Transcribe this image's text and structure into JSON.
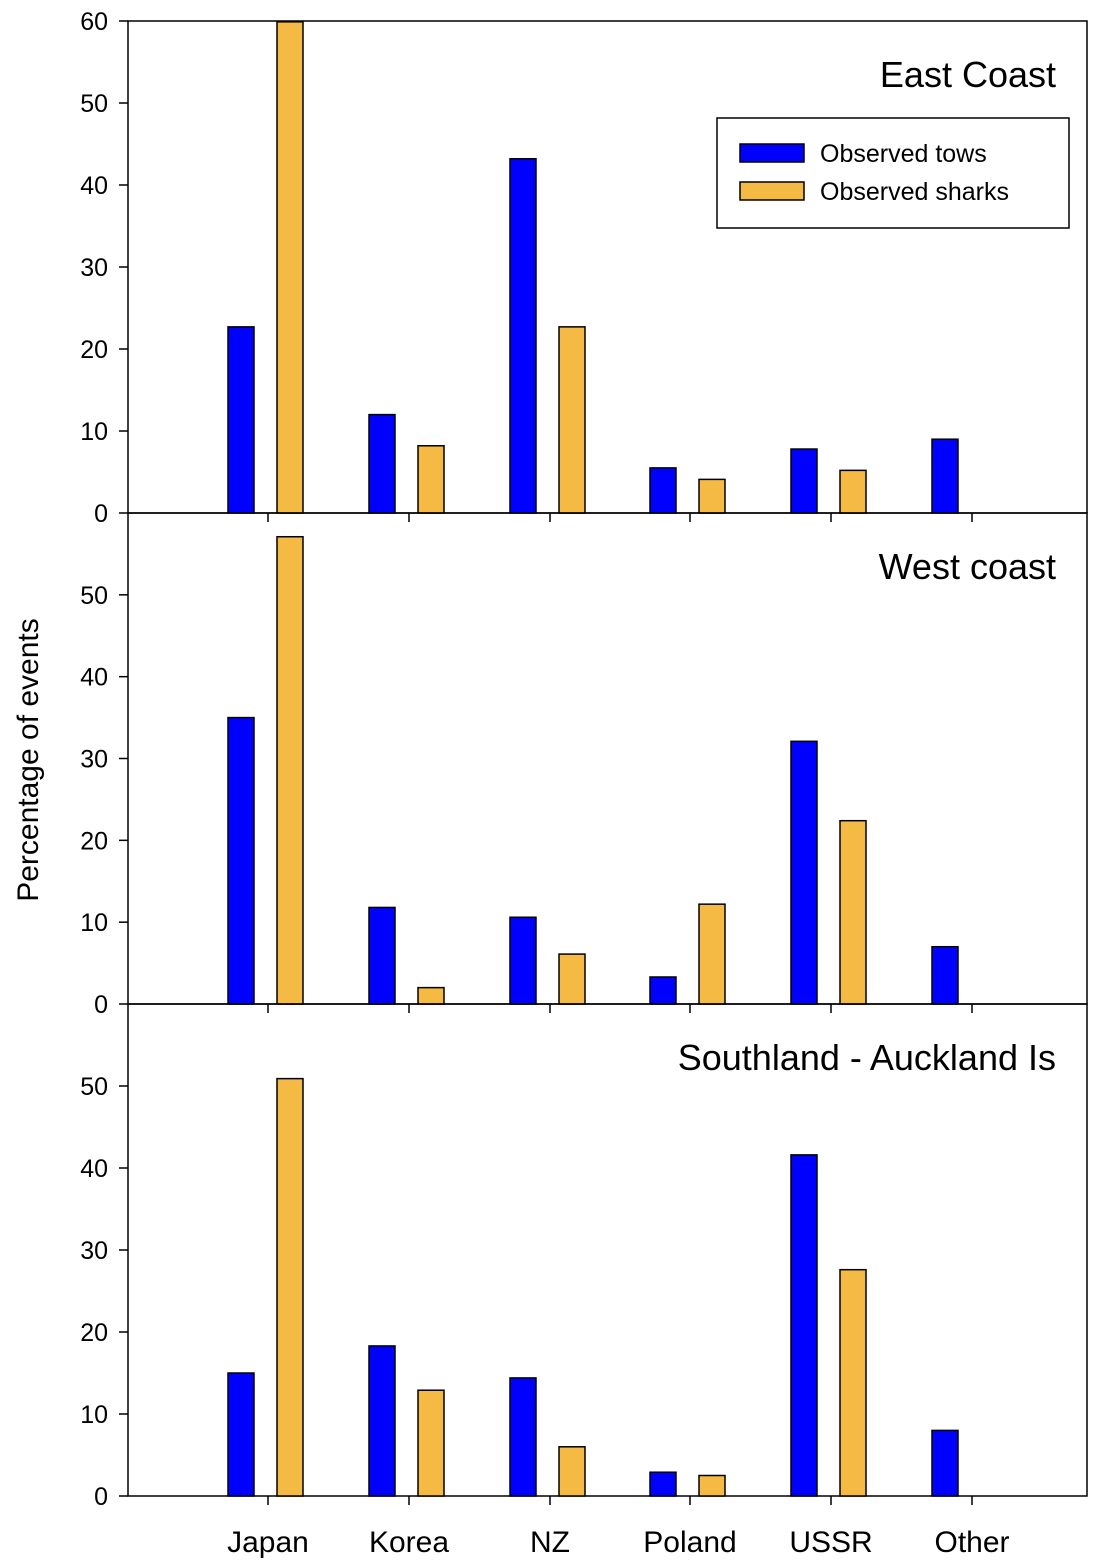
{
  "chart_data": {
    "type": "bar",
    "ylabel": "Percentage of events",
    "categories": [
      "Japan",
      "Korea",
      "NZ",
      "Poland",
      "USSR",
      "Other"
    ],
    "legend": {
      "placement": "top-right of first panel",
      "entries": [
        "Observed tows",
        "Observed sharks"
      ]
    },
    "colors": {
      "Observed tows": "#0000FF",
      "Observed sharks": "#F5BA44"
    },
    "panels": [
      {
        "title": "East Coast",
        "ylim": [
          0,
          60
        ],
        "yticks": [
          0,
          10,
          20,
          30,
          40,
          50,
          60
        ],
        "series": [
          {
            "name": "Observed tows",
            "values": [
              22.7,
              12.0,
              43.2,
              5.5,
              7.8,
              9.0
            ]
          },
          {
            "name": "Observed sharks",
            "values": [
              59.9,
              8.2,
              22.7,
              4.1,
              5.2,
              0
            ]
          }
        ]
      },
      {
        "title": "West coast",
        "ylim": [
          0,
          60
        ],
        "yticks": [
          0,
          10,
          20,
          30,
          40,
          50
        ],
        "series": [
          {
            "name": "Observed tows",
            "values": [
              35.0,
              11.8,
              10.6,
              3.3,
              32.1,
              7.0
            ]
          },
          {
            "name": "Observed sharks",
            "values": [
              57.1,
              2.0,
              6.1,
              12.2,
              22.4,
              0
            ]
          }
        ]
      },
      {
        "title": "Southland - Auckland Is",
        "ylim": [
          0,
          60
        ],
        "yticks": [
          0,
          10,
          20,
          30,
          40,
          50
        ],
        "series": [
          {
            "name": "Observed tows",
            "values": [
              15.0,
              18.3,
              14.4,
              2.9,
              41.6,
              8.0
            ]
          },
          {
            "name": "Observed sharks",
            "values": [
              50.9,
              12.9,
              6.0,
              2.5,
              27.6,
              0
            ]
          }
        ]
      }
    ]
  }
}
